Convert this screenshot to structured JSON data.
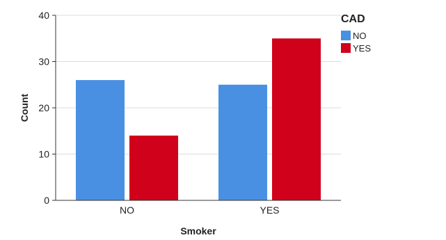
{
  "chart_data": {
    "type": "bar",
    "xlabel": "Smoker",
    "ylabel": "Count",
    "categories": [
      "NO",
      "YES"
    ],
    "series": [
      {
        "name": "NO",
        "values": [
          26,
          25
        ],
        "color": "#4a90e2"
      },
      {
        "name": "YES",
        "values": [
          14,
          35
        ],
        "color": "#d0021b"
      }
    ],
    "ylim": [
      0,
      40
    ],
    "yticks": [
      0,
      10,
      20,
      30,
      40
    ],
    "grid": true,
    "legend": {
      "title": "CAD",
      "position": "top-right"
    }
  }
}
